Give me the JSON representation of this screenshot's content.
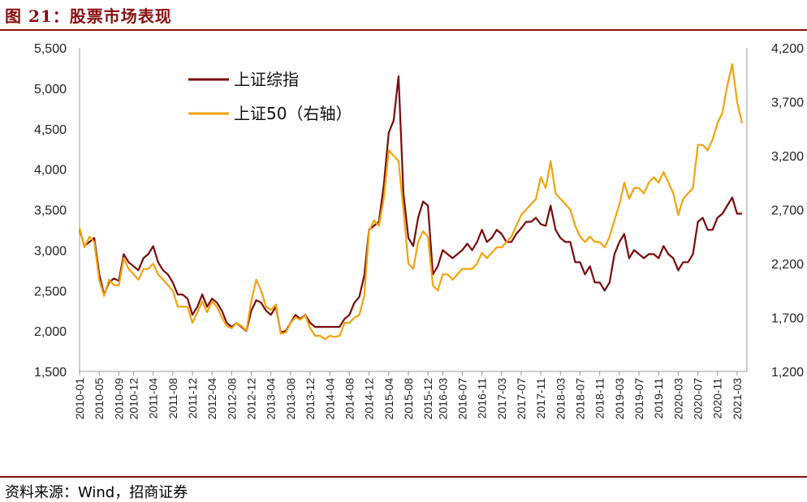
{
  "header": {
    "title": "图 21：股票市场表现"
  },
  "footer": {
    "source": "资料来源：Wind，招商证券"
  },
  "chart_data": {
    "type": "line",
    "title": "",
    "left_axis": {
      "ylim": [
        1500,
        5500
      ],
      "ticks": [
        "1,500",
        "2,000",
        "2,500",
        "3,000",
        "3,500",
        "4,000",
        "4,500",
        "5,000",
        "5,500"
      ]
    },
    "right_axis": {
      "ylim": [
        1200,
        4200
      ],
      "ticks": [
        "1,200",
        "1,700",
        "2,200",
        "2,700",
        "3,200",
        "3,700",
        "4,200"
      ]
    },
    "x_ticks": [
      "2010-01",
      "2010-05",
      "2010-09",
      "2010-12",
      "2011-04",
      "2011-08",
      "2011-12",
      "2012-04",
      "2012-08",
      "2012-12",
      "2013-04",
      "2013-08",
      "2013-12",
      "2014-04",
      "2014-08",
      "2014-12",
      "2015-04",
      "2015-08",
      "2015-12",
      "2016-03",
      "2016-07",
      "2016-11",
      "2017-03",
      "2017-07",
      "2017-11",
      "2018-03",
      "2018-07",
      "2018-11",
      "2019-03",
      "2019-07",
      "2019-11",
      "2020-03",
      "2020-07",
      "2020-11",
      "2021-03"
    ],
    "x_range": [
      "2010-01",
      "2021-05"
    ],
    "legend": {
      "placement": "top-left"
    },
    "series": [
      {
        "name": "上证综指",
        "axis": "left",
        "color": "#7a0a0a",
        "points": [
          [
            "2010-01",
            3250
          ],
          [
            "2010-02",
            3050
          ],
          [
            "2010-03",
            3100
          ],
          [
            "2010-04",
            3150
          ],
          [
            "2010-05",
            2700
          ],
          [
            "2010-06",
            2450
          ],
          [
            "2010-07",
            2600
          ],
          [
            "2010-08",
            2650
          ],
          [
            "2010-09",
            2620
          ],
          [
            "2010-10",
            2950
          ],
          [
            "2010-11",
            2850
          ],
          [
            "2010-12",
            2800
          ],
          [
            "2011-01",
            2750
          ],
          [
            "2011-02",
            2900
          ],
          [
            "2011-03",
            2950
          ],
          [
            "2011-04",
            3050
          ],
          [
            "2011-05",
            2850
          ],
          [
            "2011-06",
            2750
          ],
          [
            "2011-07",
            2700
          ],
          [
            "2011-08",
            2600
          ],
          [
            "2011-09",
            2450
          ],
          [
            "2011-10",
            2450
          ],
          [
            "2011-11",
            2400
          ],
          [
            "2011-12",
            2200
          ],
          [
            "2012-01",
            2300
          ],
          [
            "2012-02",
            2450
          ],
          [
            "2012-03",
            2300
          ],
          [
            "2012-04",
            2400
          ],
          [
            "2012-05",
            2350
          ],
          [
            "2012-06",
            2250
          ],
          [
            "2012-07",
            2100
          ],
          [
            "2012-08",
            2050
          ],
          [
            "2012-09",
            2100
          ],
          [
            "2012-10",
            2050
          ],
          [
            "2012-11",
            2000
          ],
          [
            "2012-12",
            2250
          ],
          [
            "2013-01",
            2380
          ],
          [
            "2013-02",
            2350
          ],
          [
            "2013-03",
            2250
          ],
          [
            "2013-04",
            2200
          ],
          [
            "2013-05",
            2300
          ],
          [
            "2013-06",
            1980
          ],
          [
            "2013-07",
            2000
          ],
          [
            "2013-08",
            2100
          ],
          [
            "2013-09",
            2200
          ],
          [
            "2013-10",
            2150
          ],
          [
            "2013-11",
            2200
          ],
          [
            "2013-12",
            2100
          ],
          [
            "2014-01",
            2050
          ],
          [
            "2014-02",
            2050
          ],
          [
            "2014-03",
            2050
          ],
          [
            "2014-04",
            2050
          ],
          [
            "2014-05",
            2050
          ],
          [
            "2014-06",
            2050
          ],
          [
            "2014-07",
            2150
          ],
          [
            "2014-08",
            2200
          ],
          [
            "2014-09",
            2350
          ],
          [
            "2014-10",
            2420
          ],
          [
            "2014-11",
            2680
          ],
          [
            "2014-12",
            3250
          ],
          [
            "2015-01",
            3300
          ],
          [
            "2015-02",
            3350
          ],
          [
            "2015-03",
            3800
          ],
          [
            "2015-04",
            4450
          ],
          [
            "2015-05",
            4600
          ],
          [
            "2015-06",
            5150
          ],
          [
            "2015-07",
            3700
          ],
          [
            "2015-08",
            3150
          ],
          [
            "2015-09",
            3050
          ],
          [
            "2015-10",
            3400
          ],
          [
            "2015-11",
            3600
          ],
          [
            "2015-12",
            3550
          ],
          [
            "2016-01",
            2700
          ],
          [
            "2016-02",
            2800
          ],
          [
            "2016-03",
            3000
          ],
          [
            "2016-04",
            2950
          ],
          [
            "2016-05",
            2900
          ],
          [
            "2016-06",
            2950
          ],
          [
            "2016-07",
            3000
          ],
          [
            "2016-08",
            3080
          ],
          [
            "2016-09",
            3000
          ],
          [
            "2016-10",
            3100
          ],
          [
            "2016-11",
            3250
          ],
          [
            "2016-12",
            3100
          ],
          [
            "2017-01",
            3150
          ],
          [
            "2017-02",
            3250
          ],
          [
            "2017-03",
            3200
          ],
          [
            "2017-04",
            3100
          ],
          [
            "2017-05",
            3100
          ],
          [
            "2017-06",
            3200
          ],
          [
            "2017-07",
            3270
          ],
          [
            "2017-08",
            3350
          ],
          [
            "2017-09",
            3350
          ],
          [
            "2017-10",
            3400
          ],
          [
            "2017-11",
            3320
          ],
          [
            "2017-12",
            3300
          ],
          [
            "2018-01",
            3550
          ],
          [
            "2018-02",
            3250
          ],
          [
            "2018-03",
            3150
          ],
          [
            "2018-04",
            3100
          ],
          [
            "2018-05",
            3100
          ],
          [
            "2018-06",
            2850
          ],
          [
            "2018-07",
            2850
          ],
          [
            "2018-08",
            2700
          ],
          [
            "2018-09",
            2800
          ],
          [
            "2018-10",
            2600
          ],
          [
            "2018-11",
            2600
          ],
          [
            "2018-12",
            2500
          ],
          [
            "2019-01",
            2600
          ],
          [
            "2019-02",
            2950
          ],
          [
            "2019-03",
            3100
          ],
          [
            "2019-04",
            3200
          ],
          [
            "2019-05",
            2900
          ],
          [
            "2019-06",
            3000
          ],
          [
            "2019-07",
            2950
          ],
          [
            "2019-08",
            2900
          ],
          [
            "2019-09",
            2950
          ],
          [
            "2019-10",
            2950
          ],
          [
            "2019-11",
            2900
          ],
          [
            "2019-12",
            3050
          ],
          [
            "2020-01",
            2950
          ],
          [
            "2020-02",
            2900
          ],
          [
            "2020-03",
            2750
          ],
          [
            "2020-04",
            2850
          ],
          [
            "2020-05",
            2850
          ],
          [
            "2020-06",
            2950
          ],
          [
            "2020-07",
            3350
          ],
          [
            "2020-08",
            3400
          ],
          [
            "2020-09",
            3250
          ],
          [
            "2020-10",
            3250
          ],
          [
            "2020-11",
            3400
          ],
          [
            "2020-12",
            3450
          ],
          [
            "2021-01",
            3550
          ],
          [
            "2021-02",
            3650
          ],
          [
            "2021-03",
            3450
          ],
          [
            "2021-04",
            3450
          ]
        ]
      },
      {
        "name": "上证50（右轴）",
        "axis": "right",
        "color": "#f5a20a",
        "points": [
          [
            "2010-01",
            2530
          ],
          [
            "2010-02",
            2350
          ],
          [
            "2010-03",
            2450
          ],
          [
            "2010-04",
            2400
          ],
          [
            "2010-05",
            2050
          ],
          [
            "2010-06",
            1900
          ],
          [
            "2010-07",
            2050
          ],
          [
            "2010-08",
            2000
          ],
          [
            "2010-09",
            2000
          ],
          [
            "2010-10",
            2250
          ],
          [
            "2010-11",
            2150
          ],
          [
            "2010-12",
            2100
          ],
          [
            "2011-01",
            2050
          ],
          [
            "2011-02",
            2150
          ],
          [
            "2011-03",
            2150
          ],
          [
            "2011-04",
            2200
          ],
          [
            "2011-05",
            2100
          ],
          [
            "2011-06",
            2050
          ],
          [
            "2011-07",
            2000
          ],
          [
            "2011-08",
            1950
          ],
          [
            "2011-09",
            1800
          ],
          [
            "2011-10",
            1800
          ],
          [
            "2011-11",
            1800
          ],
          [
            "2011-12",
            1650
          ],
          [
            "2012-01",
            1750
          ],
          [
            "2012-02",
            1850
          ],
          [
            "2012-03",
            1750
          ],
          [
            "2012-04",
            1850
          ],
          [
            "2012-05",
            1800
          ],
          [
            "2012-06",
            1700
          ],
          [
            "2012-07",
            1620
          ],
          [
            "2012-08",
            1600
          ],
          [
            "2012-09",
            1650
          ],
          [
            "2012-10",
            1620
          ],
          [
            "2012-11",
            1580
          ],
          [
            "2012-12",
            1850
          ],
          [
            "2013-01",
            2050
          ],
          [
            "2013-02",
            1950
          ],
          [
            "2013-03",
            1800
          ],
          [
            "2013-04",
            1770
          ],
          [
            "2013-05",
            1820
          ],
          [
            "2013-06",
            1550
          ],
          [
            "2013-07",
            1560
          ],
          [
            "2013-08",
            1650
          ],
          [
            "2013-09",
            1700
          ],
          [
            "2013-10",
            1680
          ],
          [
            "2013-11",
            1720
          ],
          [
            "2013-12",
            1600
          ],
          [
            "2014-01",
            1530
          ],
          [
            "2014-02",
            1530
          ],
          [
            "2014-03",
            1500
          ],
          [
            "2014-04",
            1530
          ],
          [
            "2014-05",
            1520
          ],
          [
            "2014-06",
            1530
          ],
          [
            "2014-07",
            1650
          ],
          [
            "2014-08",
            1650
          ],
          [
            "2014-09",
            1700
          ],
          [
            "2014-10",
            1720
          ],
          [
            "2014-11",
            1900
          ],
          [
            "2014-12",
            2500
          ],
          [
            "2015-01",
            2600
          ],
          [
            "2015-02",
            2550
          ],
          [
            "2015-03",
            2800
          ],
          [
            "2015-04",
            3250
          ],
          [
            "2015-05",
            3200
          ],
          [
            "2015-06",
            3150
          ],
          [
            "2015-07",
            2700
          ],
          [
            "2015-08",
            2200
          ],
          [
            "2015-09",
            2150
          ],
          [
            "2015-10",
            2400
          ],
          [
            "2015-11",
            2500
          ],
          [
            "2015-12",
            2450
          ],
          [
            "2016-01",
            2000
          ],
          [
            "2016-02",
            1950
          ],
          [
            "2016-03",
            2100
          ],
          [
            "2016-04",
            2100
          ],
          [
            "2016-05",
            2050
          ],
          [
            "2016-06",
            2100
          ],
          [
            "2016-07",
            2150
          ],
          [
            "2016-08",
            2150
          ],
          [
            "2016-09",
            2150
          ],
          [
            "2016-10",
            2200
          ],
          [
            "2016-11",
            2300
          ],
          [
            "2016-12",
            2250
          ],
          [
            "2017-01",
            2300
          ],
          [
            "2017-02",
            2350
          ],
          [
            "2017-03",
            2350
          ],
          [
            "2017-04",
            2400
          ],
          [
            "2017-05",
            2450
          ],
          [
            "2017-06",
            2550
          ],
          [
            "2017-07",
            2650
          ],
          [
            "2017-08",
            2700
          ],
          [
            "2017-09",
            2750
          ],
          [
            "2017-10",
            2800
          ],
          [
            "2017-11",
            3000
          ],
          [
            "2017-12",
            2900
          ],
          [
            "2018-01",
            3150
          ],
          [
            "2018-02",
            2850
          ],
          [
            "2018-03",
            2800
          ],
          [
            "2018-04",
            2750
          ],
          [
            "2018-05",
            2700
          ],
          [
            "2018-06",
            2550
          ],
          [
            "2018-07",
            2450
          ],
          [
            "2018-08",
            2400
          ],
          [
            "2018-09",
            2450
          ],
          [
            "2018-10",
            2400
          ],
          [
            "2018-11",
            2400
          ],
          [
            "2018-12",
            2350
          ],
          [
            "2019-01",
            2450
          ],
          [
            "2019-02",
            2600
          ],
          [
            "2019-03",
            2750
          ],
          [
            "2019-04",
            2950
          ],
          [
            "2019-05",
            2800
          ],
          [
            "2019-06",
            2900
          ],
          [
            "2019-07",
            2900
          ],
          [
            "2019-08",
            2850
          ],
          [
            "2019-09",
            2950
          ],
          [
            "2019-10",
            3000
          ],
          [
            "2019-11",
            2950
          ],
          [
            "2019-12",
            3050
          ],
          [
            "2020-01",
            2950
          ],
          [
            "2020-02",
            2850
          ],
          [
            "2020-03",
            2650
          ],
          [
            "2020-04",
            2800
          ],
          [
            "2020-05",
            2850
          ],
          [
            "2020-06",
            2900
          ],
          [
            "2020-07",
            3300
          ],
          [
            "2020-08",
            3300
          ],
          [
            "2020-09",
            3250
          ],
          [
            "2020-10",
            3350
          ],
          [
            "2020-11",
            3500
          ],
          [
            "2020-12",
            3600
          ],
          [
            "2021-01",
            3850
          ],
          [
            "2021-02",
            4050
          ],
          [
            "2021-03",
            3700
          ],
          [
            "2021-04",
            3500
          ]
        ]
      }
    ]
  }
}
